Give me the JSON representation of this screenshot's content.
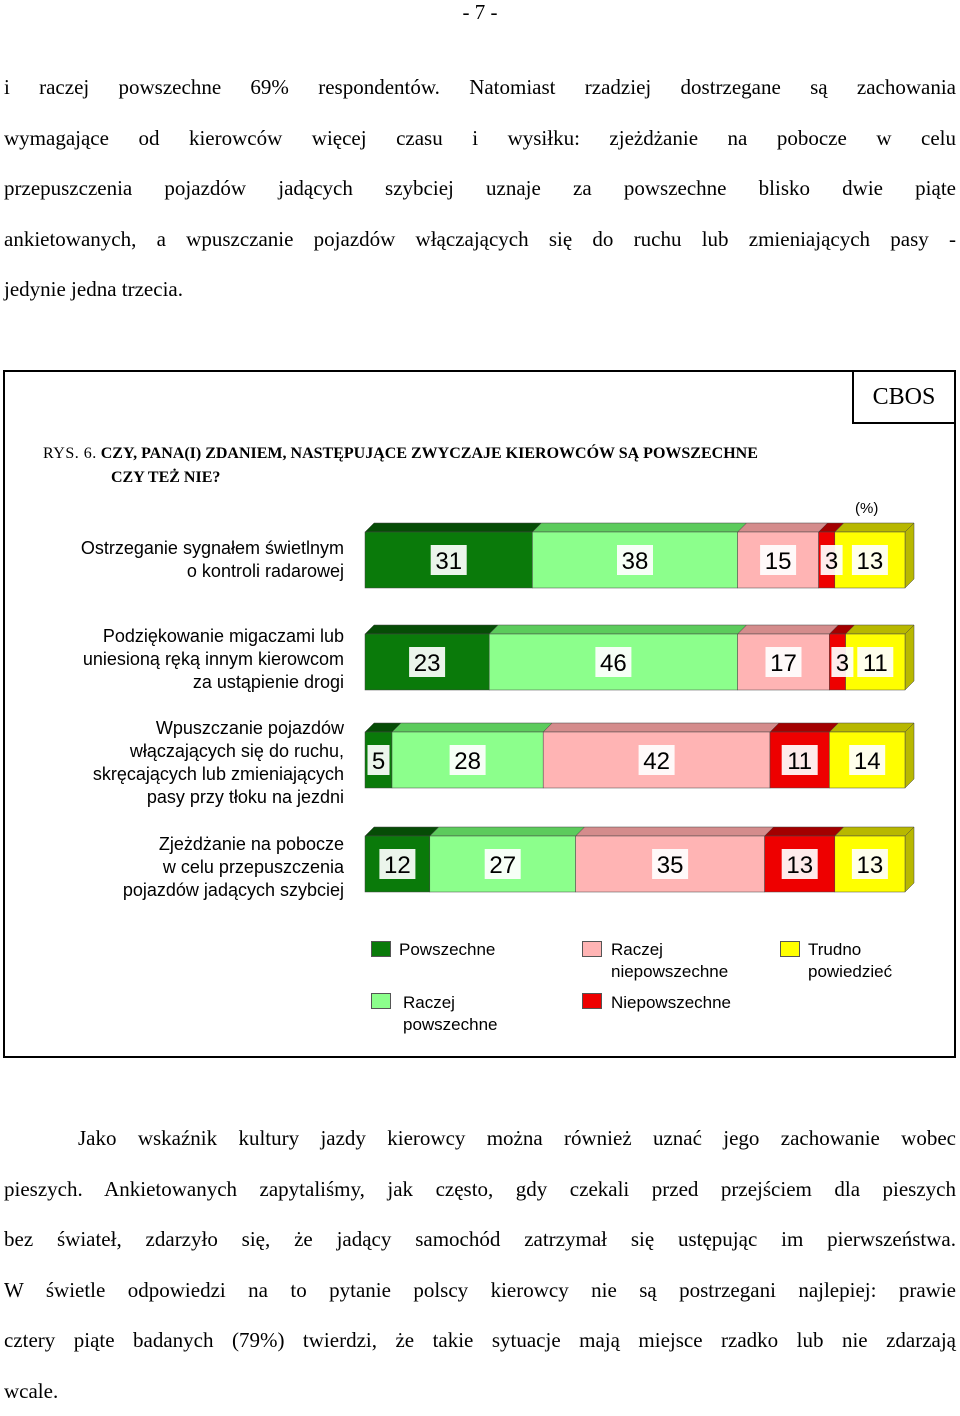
{
  "page_number": "- 7 -",
  "intro_lines": [
    "i raczej powszechne 69% respondentów. Natomiast rzadziej dostrzegane są zachowania",
    "wymagające od kierowców więcej czasu i wysiłku: zjeżdżanie na pobocze w celu",
    "przepuszczenia pojazdów jadących szybciej uznaje za powszechne blisko dwie piąte",
    "ankietowanych, a wpuszczanie pojazdów włączających się do ruchu lub zmieniających pasy -",
    "jedynie jedna trzecia."
  ],
  "figure": {
    "source_label": "CBOS",
    "figure_label": "RYS. 6.",
    "title_line1": "CZY, PANA(I) ZDANIEM, NASTĘPUJĄCE ZWYCZAJE KIEROWCÓW SĄ POWSZECHNE",
    "title_line2": "CZY TEŻ NIE?",
    "unit": "(%)"
  },
  "chart_data": {
    "type": "bar",
    "stacked": true,
    "orientation": "horizontal",
    "categories": [
      [
        "Ostrzeganie sygnałem świetlnym",
        "o kontroli radarowej"
      ],
      [
        "Podziękowanie migaczami lub",
        "uniesioną ręką innym kierowcom",
        "za ustąpienie drogi"
      ],
      [
        "Wpuszczanie pojazdów",
        "włączających się do ruchu,",
        "skręcających lub zmieniających",
        "pasy przy tłoku na jezdni"
      ],
      [
        "Zjeżdżanie na pobocze",
        "w celu przepuszczenia",
        "pojazdów jadących szybciej"
      ]
    ],
    "series": [
      {
        "name": "Powszechne",
        "color": "#0a7a0a",
        "values": [
          31,
          23,
          5,
          12
        ]
      },
      {
        "name": "Raczej powszechne",
        "color": "#8cff8c",
        "values": [
          38,
          46,
          28,
          27
        ]
      },
      {
        "name": "Raczej niepowszechne",
        "color": "#ffb4b4",
        "values": [
          15,
          17,
          42,
          35
        ]
      },
      {
        "name": "Niepowszechne",
        "color": "#ee0000",
        "values": [
          3,
          3,
          11,
          13
        ]
      },
      {
        "name": "Trudno powiedzieć",
        "color": "#ffff00",
        "values": [
          13,
          11,
          14,
          13
        ]
      }
    ],
    "xlim": [
      0,
      100
    ]
  },
  "legend": [
    {
      "lines": [
        "Powszechne"
      ],
      "color": "#0a7a0a"
    },
    {
      "lines": [
        "Raczej",
        "niepowszechne"
      ],
      "color": "#ffb4b4"
    },
    {
      "lines": [
        "Trudno",
        "powiedzieć"
      ],
      "color": "#ffff00"
    },
    {
      "lines": [
        "Raczej",
        "powszechne"
      ],
      "color": "#8cff8c"
    },
    {
      "lines": [
        "Niepowszechne"
      ],
      "color": "#ee0000"
    }
  ],
  "outro_lines": [
    "Jako wskaźnik kultury jazdy kierowcy można również uznać jego zachowanie wobec",
    "pieszych. Ankietowanych zapytaliśmy, jak często, gdy czekali przed przejściem dla pieszych",
    "bez świateł, zdarzyło się, że jadący samochód zatrzymał się ustępując im pierwszeństwa.",
    "W świetle odpowiedzi na to pytanie polscy kierowcy nie są postrzegani najlepiej: prawie",
    "cztery piąte badanych (79%) twierdzi, że takie sytuacje mają miejsce rzadko lub nie zdarzają",
    "wcale."
  ]
}
